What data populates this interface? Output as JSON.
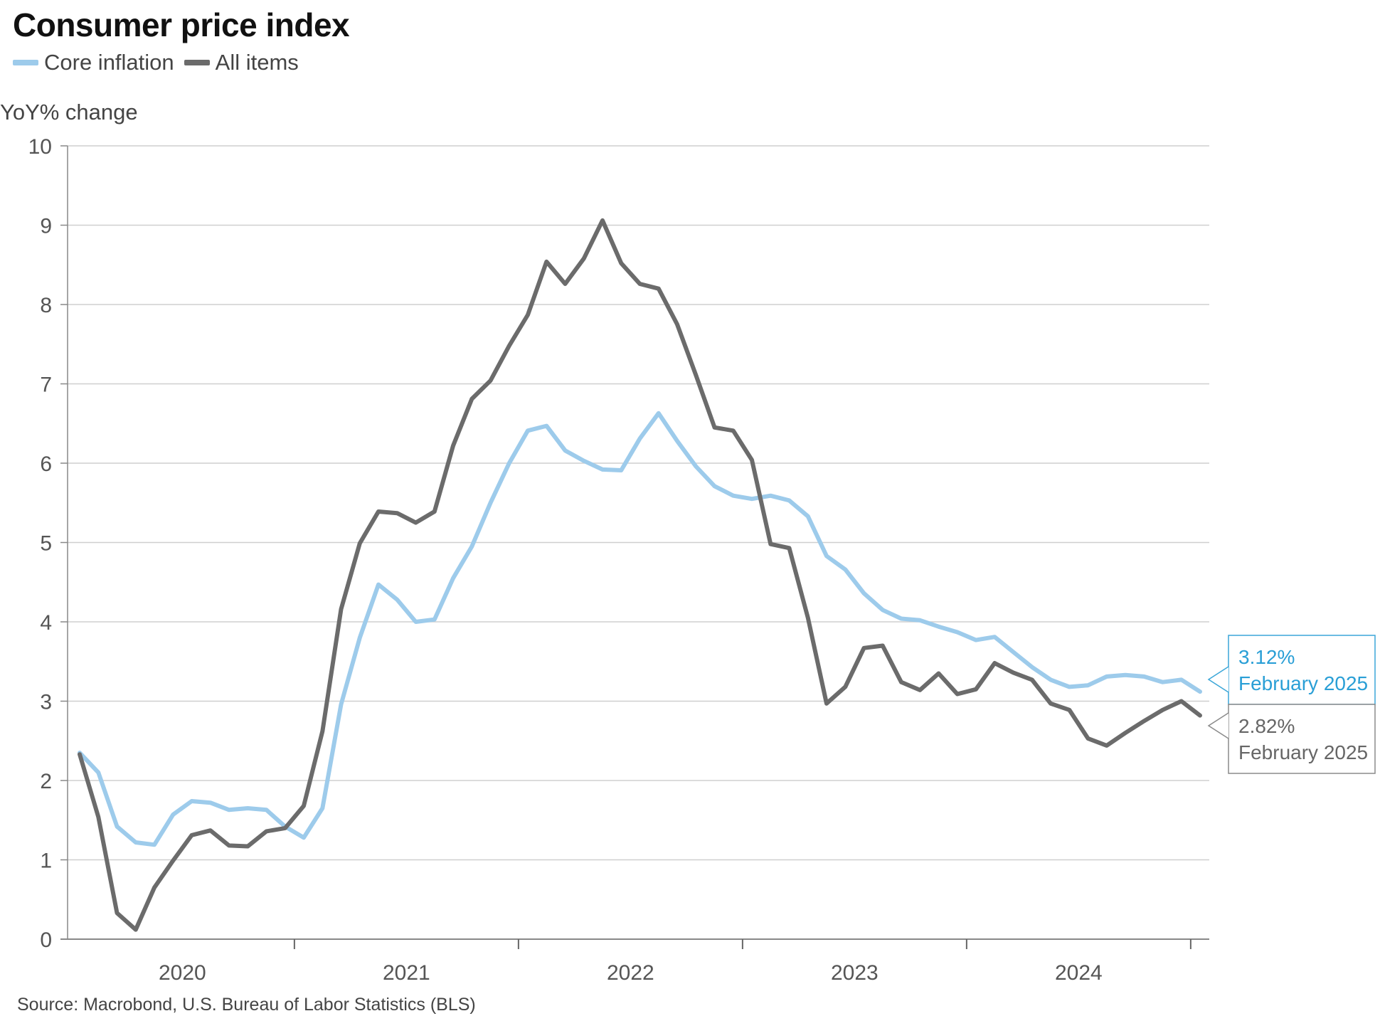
{
  "title": "Consumer price index",
  "legend": [
    {
      "label": "Core inflation",
      "color": "#9dcbeb"
    },
    {
      "label": "All items",
      "color": "#6b6b6b"
    }
  ],
  "source": "Source: Macrobond, U.S. Bureau of Labor Statistics (BLS)",
  "annotations": {
    "core": {
      "value": "3.12%",
      "date": "February 2025",
      "color": "#2a9fd6"
    },
    "all": {
      "value": "2.82%",
      "date": "February 2025",
      "color": "#666666"
    }
  },
  "chart_data": {
    "type": "line",
    "ylabel": "YoY% change",
    "ylim": [
      0,
      10
    ],
    "yticks": [
      "0",
      "1",
      "2",
      "3",
      "4",
      "5",
      "6",
      "7",
      "8",
      "9",
      "10"
    ],
    "xticks": [
      "2020",
      "2021",
      "2022",
      "2023",
      "2024"
    ],
    "x_start": "2020-01",
    "x_end": "2025-02",
    "grid": true,
    "series": [
      {
        "name": "Core inflation",
        "color": "#9dcbeb",
        "values": [
          2.35,
          2.1,
          1.42,
          1.22,
          1.19,
          1.57,
          1.74,
          1.72,
          1.63,
          1.65,
          1.63,
          1.42,
          1.28,
          1.65,
          2.96,
          3.8,
          4.47,
          4.28,
          4.0,
          4.03,
          4.55,
          4.95,
          5.5,
          6.0,
          6.41,
          6.47,
          6.16,
          6.03,
          5.92,
          5.91,
          6.31,
          6.63,
          6.28,
          5.96,
          5.71,
          5.59,
          5.55,
          5.59,
          5.53,
          5.33,
          4.83,
          4.66,
          4.36,
          4.15,
          4.04,
          4.02,
          3.94,
          3.87,
          3.77,
          3.81,
          3.62,
          3.43,
          3.27,
          3.18,
          3.2,
          3.31,
          3.33,
          3.31,
          3.24,
          3.27,
          3.12
        ]
      },
      {
        "name": "All items",
        "color": "#6b6b6b",
        "values": [
          2.33,
          1.54,
          0.33,
          0.12,
          0.65,
          0.99,
          1.31,
          1.37,
          1.18,
          1.17,
          1.36,
          1.4,
          1.68,
          2.62,
          4.16,
          4.99,
          5.39,
          5.37,
          5.25,
          5.39,
          6.22,
          6.81,
          7.04,
          7.48,
          7.87,
          8.54,
          8.26,
          8.58,
          9.06,
          8.52,
          8.26,
          8.2,
          7.75,
          7.11,
          6.45,
          6.41,
          6.04,
          4.98,
          4.93,
          4.05,
          2.97,
          3.18,
          3.67,
          3.7,
          3.24,
          3.14,
          3.35,
          3.09,
          3.15,
          3.48,
          3.36,
          3.27,
          2.97,
          2.89,
          2.53,
          2.44,
          2.6,
          2.75,
          2.89,
          3.0,
          2.82
        ]
      }
    ]
  }
}
